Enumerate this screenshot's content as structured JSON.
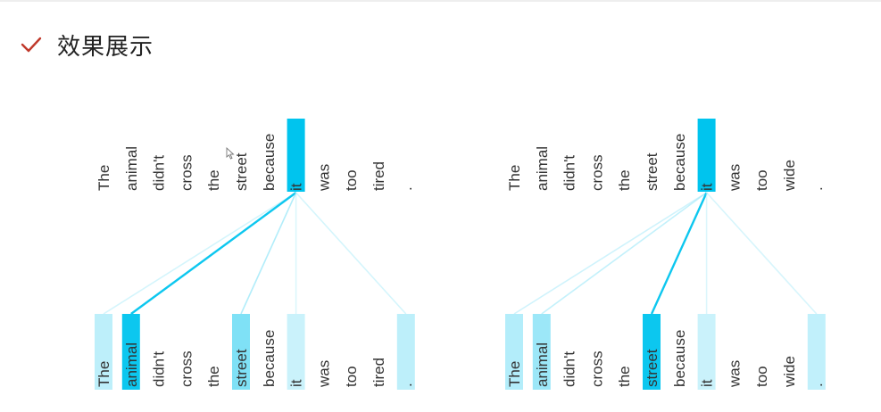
{
  "heading": {
    "icon": "check-icon",
    "icon_color": "#c0392b",
    "title": "效果展示"
  },
  "colors": {
    "attention_full": "#00c4ee",
    "attention_base": "#e6f8fd",
    "text": "#333333"
  },
  "panels": [
    {
      "focus_index": 7,
      "top_words": [
        "The",
        "animal",
        "didn't",
        "cross",
        "the",
        "street",
        "because",
        "it",
        "was",
        "too",
        "tired",
        "."
      ],
      "bottom_words": [
        "The",
        "animal",
        "didn't",
        "cross",
        "the",
        "street",
        "because",
        "it",
        "was",
        "too",
        "tired",
        "."
      ],
      "attention": [
        0.18,
        0.95,
        0.0,
        0.0,
        0.0,
        0.45,
        0.0,
        0.12,
        0.0,
        0.0,
        0.0,
        0.18
      ]
    },
    {
      "focus_index": 7,
      "top_words": [
        "The",
        "animal",
        "didn't",
        "cross",
        "the",
        "street",
        "because",
        "it",
        "was",
        "too",
        "wide",
        "."
      ],
      "bottom_words": [
        "The",
        "animal",
        "didn't",
        "cross",
        "the",
        "street",
        "because",
        "it",
        "was",
        "too",
        "wide",
        "."
      ],
      "attention": [
        0.22,
        0.32,
        0.0,
        0.0,
        0.0,
        0.95,
        0.0,
        0.12,
        0.0,
        0.0,
        0.0,
        0.16
      ]
    }
  ]
}
